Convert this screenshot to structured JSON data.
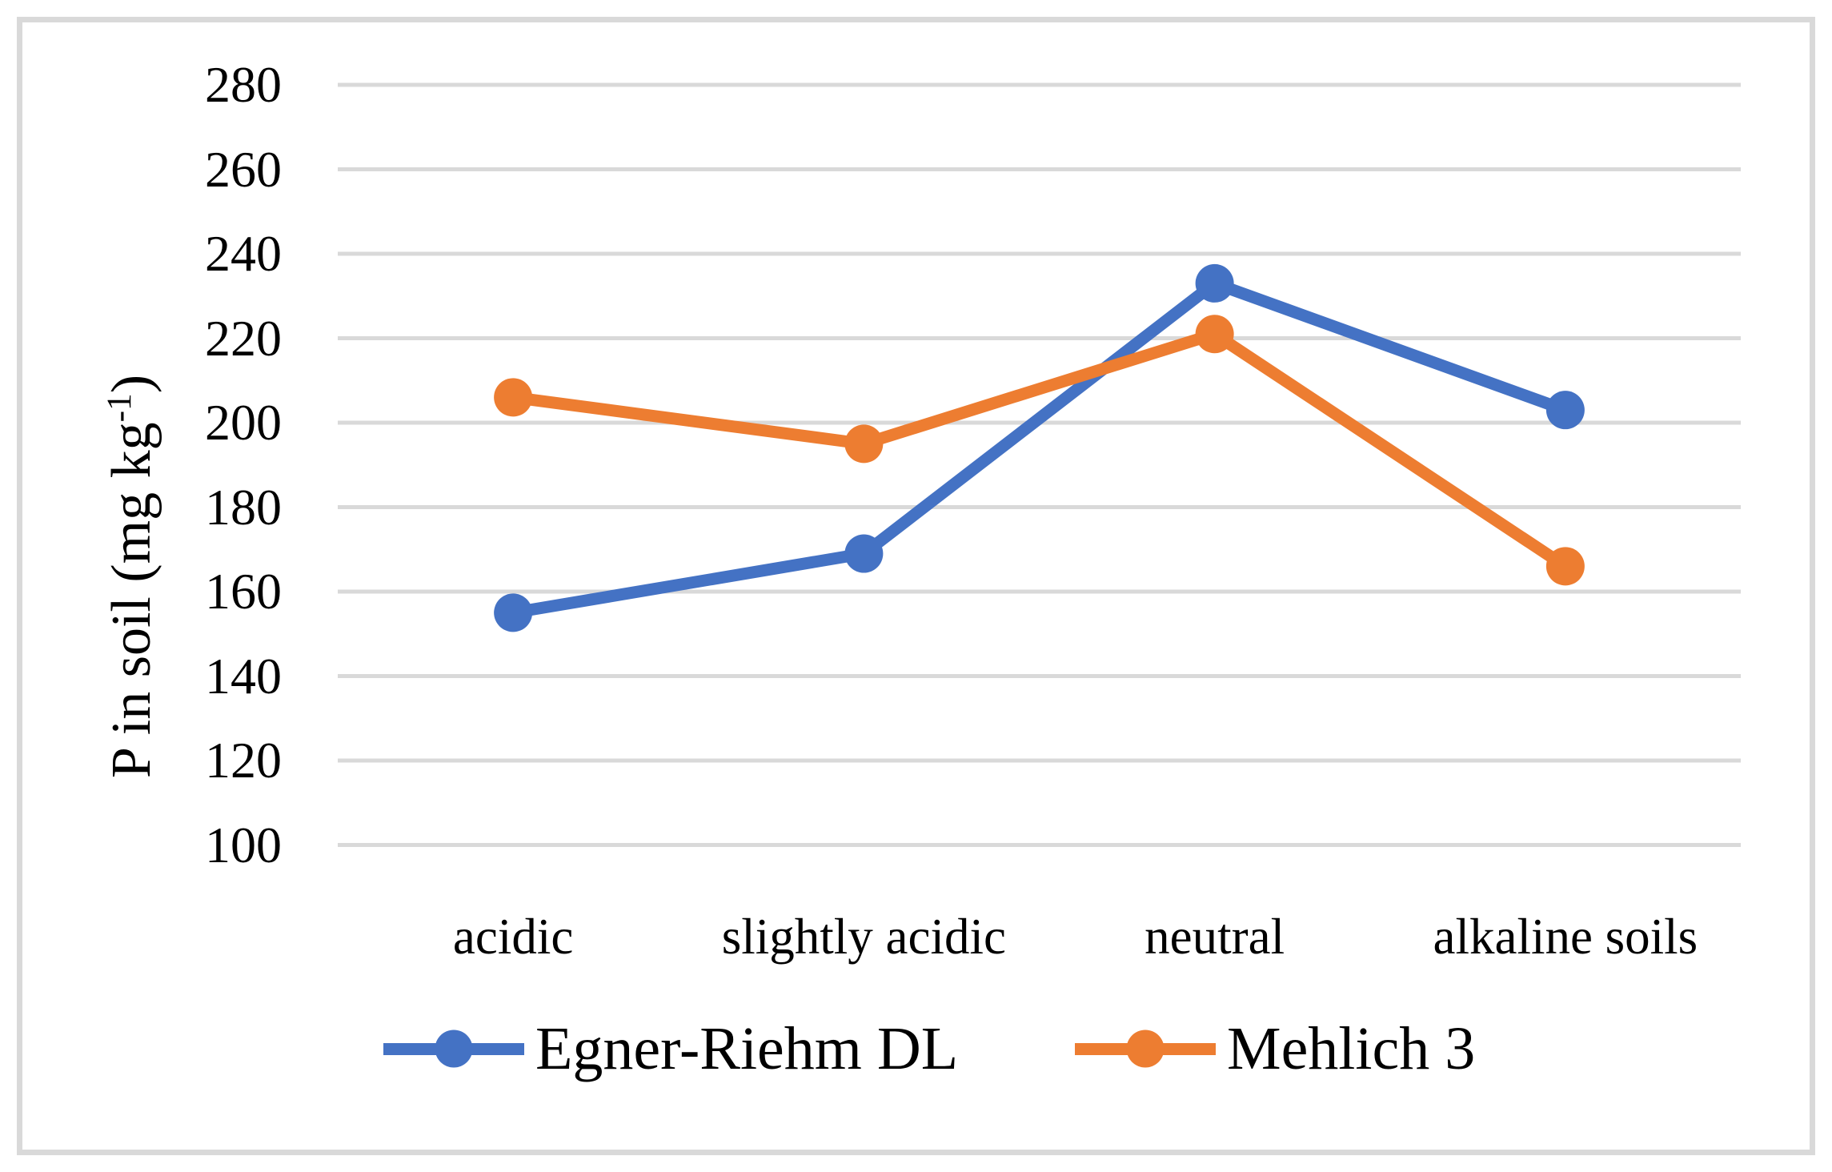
{
  "figure": {
    "background_color": "#FFFFFF",
    "border_color": "#D9D9D9",
    "text_color": "#000000"
  },
  "chart_data": {
    "type": "line",
    "title": "",
    "categories": [
      "acidic",
      "slightly acidic",
      "neutral",
      "alkaline soils"
    ],
    "series": [
      {
        "name": "Egner-Riehm DL",
        "color": "#4472C4",
        "marker": "circle",
        "values": [
          155,
          169,
          233,
          203
        ]
      },
      {
        "name": "Mehlich 3",
        "color": "#ED7D31",
        "marker": "circle",
        "values": [
          206,
          195,
          221,
          166
        ]
      }
    ],
    "ylabel": {
      "text": "P in soil (mg kg",
      "superscript": "-1",
      "suffix": ")"
    },
    "xlabel": "",
    "yticks": [
      280,
      260,
      240,
      220,
      200,
      180,
      160,
      140,
      120,
      100
    ],
    "ylim": [
      100,
      280
    ],
    "grid": "horizontal-only",
    "gridline_color": "#D9D9D9",
    "legend_position": "bottom"
  }
}
